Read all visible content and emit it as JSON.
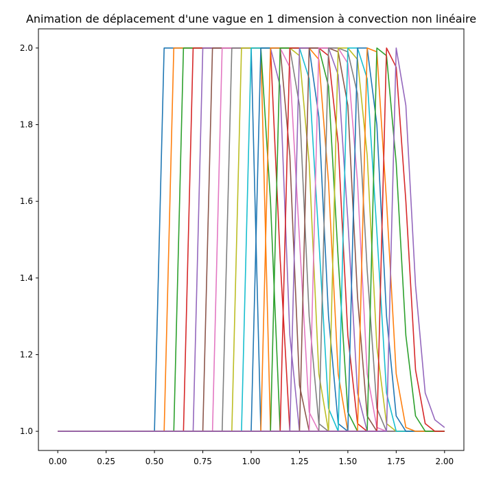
{
  "chart_data": {
    "type": "line",
    "title": "Animation de déplacement d'une vague en 1 dimension à convection non linéaire",
    "xlabel": "",
    "ylabel": "",
    "xlim": [
      -0.1,
      2.1
    ],
    "ylim": [
      0.95,
      2.05
    ],
    "grid": false,
    "legend": "none",
    "x_ticks": [
      "0.00",
      "0.25",
      "0.50",
      "0.75",
      "1.00",
      "1.25",
      "1.50",
      "1.75",
      "2.00"
    ],
    "y_ticks": [
      "1.0",
      "1.2",
      "1.4",
      "1.6",
      "1.8",
      "2.0"
    ],
    "x": [
      0.0,
      0.05,
      0.1,
      0.15,
      0.2,
      0.25,
      0.3,
      0.35,
      0.4,
      0.45,
      0.5,
      0.55,
      0.6,
      0.65,
      0.7,
      0.75,
      0.8,
      0.85,
      0.9,
      0.95,
      1.0,
      1.05,
      1.1,
      1.15,
      1.2,
      1.25,
      1.3,
      1.35,
      1.4,
      1.45,
      1.5,
      1.55,
      1.6,
      1.65,
      1.7,
      1.75,
      1.8,
      1.85,
      1.9,
      1.95,
      2.0
    ],
    "series": [
      {
        "color": "#1f77b4",
        "values": [
          1,
          1,
          1,
          1,
          1,
          1,
          1,
          1,
          1,
          1,
          1,
          2,
          2,
          2,
          2,
          2,
          2,
          2,
          2,
          2,
          2,
          1,
          1,
          1,
          1,
          1,
          1,
          1,
          1,
          1,
          1,
          1,
          1,
          1,
          1,
          1,
          1,
          1,
          1,
          1,
          1
        ]
      },
      {
        "color": "#ff7f0e",
        "values": [
          1,
          1,
          1,
          1,
          1,
          1,
          1,
          1,
          1,
          1,
          1,
          1,
          2,
          2,
          2,
          2,
          2,
          2,
          2,
          2,
          2,
          2,
          1,
          1,
          1,
          1,
          1,
          1,
          1,
          1,
          1,
          1,
          1,
          1,
          1,
          1,
          1,
          1,
          1,
          1,
          1
        ]
      },
      {
        "color": "#2ca02c",
        "values": [
          1,
          1,
          1,
          1,
          1,
          1,
          1,
          1,
          1,
          1,
          1,
          1,
          1,
          2,
          2,
          2,
          2,
          2,
          2,
          2,
          2,
          2,
          1.6,
          1,
          1,
          1,
          1,
          1,
          1,
          1,
          1,
          1,
          1,
          1,
          1,
          1,
          1,
          1,
          1,
          1,
          1
        ]
      },
      {
        "color": "#d62728",
        "values": [
          1,
          1,
          1,
          1,
          1,
          1,
          1,
          1,
          1,
          1,
          1,
          1,
          1,
          1,
          2,
          2,
          2,
          2,
          2,
          2,
          2,
          2,
          2,
          1.45,
          1,
          1,
          1,
          1,
          1,
          1,
          1,
          1,
          1,
          1,
          1,
          1,
          1,
          1,
          1,
          1,
          1
        ]
      },
      {
        "color": "#9467bd",
        "values": [
          1,
          1,
          1,
          1,
          1,
          1,
          1,
          1,
          1,
          1,
          1,
          1,
          1,
          1,
          1,
          2,
          2,
          2,
          2,
          2,
          2,
          2,
          2,
          1.9,
          1.25,
          1,
          1,
          1,
          1,
          1,
          1,
          1,
          1,
          1,
          1,
          1,
          1,
          1,
          1,
          1,
          1
        ]
      },
      {
        "color": "#8c564b",
        "values": [
          1,
          1,
          1,
          1,
          1,
          1,
          1,
          1,
          1,
          1,
          1,
          1,
          1,
          1,
          1,
          1,
          2,
          2,
          2,
          2,
          2,
          2,
          2,
          2,
          1.72,
          1.12,
          1,
          1,
          1,
          1,
          1,
          1,
          1,
          1,
          1,
          1,
          1,
          1,
          1,
          1,
          1
        ]
      },
      {
        "color": "#e377c2",
        "values": [
          1,
          1,
          1,
          1,
          1,
          1,
          1,
          1,
          1,
          1,
          1,
          1,
          1,
          1,
          1,
          1,
          1,
          2,
          2,
          2,
          2,
          2,
          2,
          2,
          1.95,
          1.5,
          1.05,
          1,
          1,
          1,
          1,
          1,
          1,
          1,
          1,
          1,
          1,
          1,
          1,
          1,
          1
        ]
      },
      {
        "color": "#7f7f7f",
        "values": [
          1,
          1,
          1,
          1,
          1,
          1,
          1,
          1,
          1,
          1,
          1,
          1,
          1,
          1,
          1,
          1,
          1,
          1,
          2,
          2,
          2,
          2,
          2,
          2,
          2,
          1.85,
          1.3,
          1.02,
          1,
          1,
          1,
          1,
          1,
          1,
          1,
          1,
          1,
          1,
          1,
          1,
          1
        ]
      },
      {
        "color": "#bcbd22",
        "values": [
          1,
          1,
          1,
          1,
          1,
          1,
          1,
          1,
          1,
          1,
          1,
          1,
          1,
          1,
          1,
          1,
          1,
          1,
          1,
          2,
          2,
          2,
          2,
          2,
          2,
          1.98,
          1.7,
          1.15,
          1,
          1,
          1,
          1,
          1,
          1,
          1,
          1,
          1,
          1,
          1,
          1,
          1
        ]
      },
      {
        "color": "#17becf",
        "values": [
          1,
          1,
          1,
          1,
          1,
          1,
          1,
          1,
          1,
          1,
          1,
          1,
          1,
          1,
          1,
          1,
          1,
          1,
          1,
          1,
          2,
          2,
          2,
          2,
          2,
          2,
          1.92,
          1.5,
          1.06,
          1,
          1,
          1,
          1,
          1,
          1,
          1,
          1,
          1,
          1,
          1,
          1
        ]
      },
      {
        "color": "#1f77b4",
        "values": [
          1,
          1,
          1,
          1,
          1,
          1,
          1,
          1,
          1,
          1,
          1,
          1,
          1,
          1,
          1,
          1,
          1,
          1,
          1,
          1,
          1,
          2,
          2,
          2,
          2,
          2,
          2,
          1.82,
          1.3,
          1.02,
          1,
          1,
          1,
          1,
          1,
          1,
          1,
          1,
          1,
          1,
          1
        ]
      },
      {
        "color": "#ff7f0e",
        "values": [
          1,
          1,
          1,
          1,
          1,
          1,
          1,
          1,
          1,
          1,
          1,
          1,
          1,
          1,
          1,
          1,
          1,
          1,
          1,
          1,
          1,
          1,
          2,
          2,
          2,
          2,
          2,
          1.97,
          1.65,
          1.15,
          1,
          1,
          1,
          1,
          1,
          1,
          1,
          1,
          1,
          1,
          1
        ]
      },
      {
        "color": "#2ca02c",
        "values": [
          1,
          1,
          1,
          1,
          1,
          1,
          1,
          1,
          1,
          1,
          1,
          1,
          1,
          1,
          1,
          1,
          1,
          1,
          1,
          1,
          1,
          1,
          1,
          2,
          2,
          2,
          2,
          2,
          1.9,
          1.45,
          1.05,
          1,
          1,
          1,
          1,
          1,
          1,
          1,
          1,
          1,
          1
        ]
      },
      {
        "color": "#d62728",
        "values": [
          1,
          1,
          1,
          1,
          1,
          1,
          1,
          1,
          1,
          1,
          1,
          1,
          1,
          1,
          1,
          1,
          1,
          1,
          1,
          1,
          1,
          1,
          1,
          1,
          2,
          2,
          2,
          2,
          1.98,
          1.75,
          1.25,
          1.02,
          1,
          1,
          1,
          1,
          1,
          1,
          1,
          1,
          1
        ]
      },
      {
        "color": "#9467bd",
        "values": [
          1,
          1,
          1,
          1,
          1,
          1,
          1,
          1,
          1,
          1,
          1,
          1,
          1,
          1,
          1,
          1,
          1,
          1,
          1,
          1,
          1,
          1,
          1,
          1,
          1,
          2,
          2,
          2,
          2,
          1.93,
          1.55,
          1.1,
          1,
          1,
          1,
          1,
          1,
          1,
          1,
          1,
          1
        ]
      },
      {
        "color": "#8c564b",
        "values": [
          1,
          1,
          1,
          1,
          1,
          1,
          1,
          1,
          1,
          1,
          1,
          1,
          1,
          1,
          1,
          1,
          1,
          1,
          1,
          1,
          1,
          1,
          1,
          1,
          1,
          1,
          2,
          2,
          2,
          1.99,
          1.85,
          1.35,
          1.04,
          1,
          1,
          1,
          1,
          1,
          1,
          1,
          1
        ]
      },
      {
        "color": "#e377c2",
        "values": [
          1,
          1,
          1,
          1,
          1,
          1,
          1,
          1,
          1,
          1,
          1,
          1,
          1,
          1,
          1,
          1,
          1,
          1,
          1,
          1,
          1,
          1,
          1,
          1,
          1,
          1,
          1,
          2,
          2,
          2,
          1.96,
          1.65,
          1.15,
          1.01,
          1,
          1,
          1,
          1,
          1,
          1,
          1
        ]
      },
      {
        "color": "#7f7f7f",
        "values": [
          1,
          1,
          1,
          1,
          1,
          1,
          1,
          1,
          1,
          1,
          1,
          1,
          1,
          1,
          1,
          1,
          1,
          1,
          1,
          1,
          1,
          1,
          1,
          1,
          1,
          1,
          1,
          1,
          2,
          2,
          1.99,
          1.88,
          1.42,
          1.06,
          1,
          1,
          1,
          1,
          1,
          1,
          1
        ]
      },
      {
        "color": "#bcbd22",
        "values": [
          1,
          1,
          1,
          1,
          1,
          1,
          1,
          1,
          1,
          1,
          1,
          1,
          1,
          1,
          1,
          1,
          1,
          1,
          1,
          1,
          1,
          1,
          1,
          1,
          1,
          1,
          1,
          1,
          1,
          2,
          2,
          1.97,
          1.72,
          1.22,
          1.02,
          1,
          1,
          1,
          1,
          1,
          1
        ]
      },
      {
        "color": "#17becf",
        "values": [
          1,
          1,
          1,
          1,
          1,
          1,
          1,
          1,
          1,
          1,
          1,
          1,
          1,
          1,
          1,
          1,
          1,
          1,
          1,
          1,
          1,
          1,
          1,
          1,
          1,
          1,
          1,
          1,
          1,
          1,
          2,
          2,
          1.92,
          1.52,
          1.1,
          1,
          1,
          1,
          1,
          1,
          1
        ]
      },
      {
        "color": "#1f77b4",
        "values": [
          1,
          1,
          1,
          1,
          1,
          1,
          1,
          1,
          1,
          1,
          1,
          1,
          1,
          1,
          1,
          1,
          1,
          1,
          1,
          1,
          1,
          1,
          1,
          1,
          1,
          1,
          1,
          1,
          1,
          1,
          1,
          2,
          2,
          1.8,
          1.3,
          1.04,
          1,
          1,
          1,
          1,
          1
        ]
      },
      {
        "color": "#ff7f0e",
        "values": [
          1,
          1,
          1,
          1,
          1,
          1,
          1,
          1,
          1,
          1,
          1,
          1,
          1,
          1,
          1,
          1,
          1,
          1,
          1,
          1,
          1,
          1,
          1,
          1,
          1,
          1,
          1,
          1,
          1,
          1,
          1,
          1,
          2,
          1.99,
          1.6,
          1.15,
          1.01,
          1,
          1,
          1,
          1
        ]
      },
      {
        "color": "#2ca02c",
        "values": [
          1,
          1,
          1,
          1,
          1,
          1,
          1,
          1,
          1,
          1,
          1,
          1,
          1,
          1,
          1,
          1,
          1,
          1,
          1,
          1,
          1,
          1,
          1,
          1,
          1,
          1,
          1,
          1,
          1,
          1,
          1,
          1,
          1,
          2,
          1.98,
          1.7,
          1.25,
          1.04,
          1,
          1,
          1
        ]
      },
      {
        "color": "#d62728",
        "values": [
          1,
          1,
          1,
          1,
          1,
          1,
          1,
          1,
          1,
          1,
          1,
          1,
          1,
          1,
          1,
          1,
          1,
          1,
          1,
          1,
          1,
          1,
          1,
          1,
          1,
          1,
          1,
          1,
          1,
          1,
          1,
          1,
          1,
          1,
          2,
          1.95,
          1.6,
          1.16,
          1.02,
          1,
          1
        ]
      },
      {
        "color": "#9467bd",
        "values": [
          1,
          1,
          1,
          1,
          1,
          1,
          1,
          1,
          1,
          1,
          1,
          1,
          1,
          1,
          1,
          1,
          1,
          1,
          1,
          1,
          1,
          1,
          1,
          1,
          1,
          1,
          1,
          1,
          1,
          1,
          1,
          1,
          1,
          1,
          1,
          2,
          1.85,
          1.38,
          1.1,
          1.03,
          1.01
        ]
      }
    ]
  }
}
